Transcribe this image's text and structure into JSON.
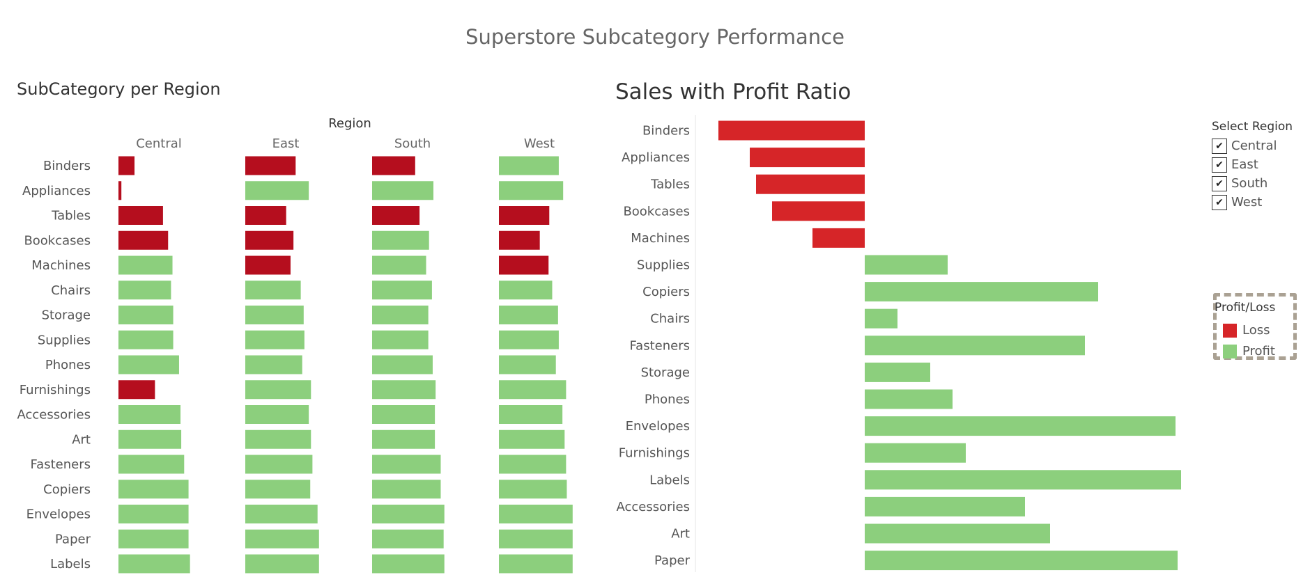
{
  "dashboard_title": "Superstore Subcategory Performance",
  "colors": {
    "region_loss": "#b50e1e",
    "loss": "#d62528",
    "profit": "#8ccf7d",
    "legend_border": "#aaa193",
    "label_text": "#555555"
  },
  "chart_data": [
    {
      "type": "bar",
      "title": "SubCategory per Region",
      "column_header": "Region",
      "columns": [
        "Central",
        "East",
        "South",
        "West"
      ],
      "categories": [
        "Binders",
        "Appliances",
        "Tables",
        "Bookcases",
        "Machines",
        "Chairs",
        "Storage",
        "Supplies",
        "Phones",
        "Furnishings",
        "Accessories",
        "Art",
        "Fasteners",
        "Copiers",
        "Envelopes",
        "Paper",
        "Labels"
      ],
      "values": {
        "Central": [
          22,
          4,
          61,
          68,
          74,
          72,
          75,
          75,
          83,
          50,
          85,
          86,
          90,
          96,
          96,
          96,
          98
        ],
        "East": [
          69,
          87,
          56,
          66,
          62,
          76,
          80,
          81,
          78,
          90,
          87,
          90,
          92,
          89,
          99,
          101,
          101
        ],
        "South": [
          59,
          84,
          65,
          78,
          74,
          82,
          77,
          77,
          83,
          87,
          86,
          86,
          94,
          94,
          99,
          98,
          99
        ],
        "West": [
          82,
          88,
          69,
          56,
          68,
          73,
          81,
          82,
          78,
          92,
          87,
          90,
          92,
          93,
          101,
          101,
          101
        ]
      },
      "status": {
        "Central": [
          "Loss",
          "Loss",
          "Loss",
          "Loss",
          "Profit",
          "Profit",
          "Profit",
          "Profit",
          "Profit",
          "Loss",
          "Profit",
          "Profit",
          "Profit",
          "Profit",
          "Profit",
          "Profit",
          "Profit"
        ],
        "East": [
          "Loss",
          "Profit",
          "Loss",
          "Loss",
          "Loss",
          "Profit",
          "Profit",
          "Profit",
          "Profit",
          "Profit",
          "Profit",
          "Profit",
          "Profit",
          "Profit",
          "Profit",
          "Profit",
          "Profit"
        ],
        "South": [
          "Loss",
          "Profit",
          "Loss",
          "Profit",
          "Profit",
          "Profit",
          "Profit",
          "Profit",
          "Profit",
          "Profit",
          "Profit",
          "Profit",
          "Profit",
          "Profit",
          "Profit",
          "Profit",
          "Profit"
        ],
        "West": [
          "Profit",
          "Profit",
          "Loss",
          "Loss",
          "Loss",
          "Profit",
          "Profit",
          "Profit",
          "Profit",
          "Profit",
          "Profit",
          "Profit",
          "Profit",
          "Profit",
          "Profit",
          "Profit",
          "Profit"
        ]
      },
      "xlim": [
        0,
        105
      ]
    },
    {
      "type": "bar",
      "title": "Sales with Profit Ratio",
      "categories": [
        "Binders",
        "Appliances",
        "Tables",
        "Bookcases",
        "Machines",
        "Supplies",
        "Copiers",
        "Chairs",
        "Fasteners",
        "Storage",
        "Phones",
        "Envelopes",
        "Furnishings",
        "Labels",
        "Accessories",
        "Art",
        "Paper"
      ],
      "values": [
        -210,
        -165,
        -156,
        -133,
        -75,
        119,
        335,
        47,
        316,
        94,
        126,
        446,
        145,
        454,
        230,
        266,
        449
      ],
      "xlim": [
        -242,
        470
      ],
      "grid": false
    }
  ],
  "filter": {
    "title": "Select Region",
    "options": [
      {
        "label": "Central",
        "checked": true
      },
      {
        "label": "East",
        "checked": true
      },
      {
        "label": "South",
        "checked": true
      },
      {
        "label": "West",
        "checked": true
      }
    ],
    "check_icon": "✔"
  },
  "legend": {
    "title": "Profit/Loss",
    "items": [
      {
        "label": "Loss",
        "color": "#d62528"
      },
      {
        "label": "Profit",
        "color": "#8ccf7d"
      }
    ]
  }
}
